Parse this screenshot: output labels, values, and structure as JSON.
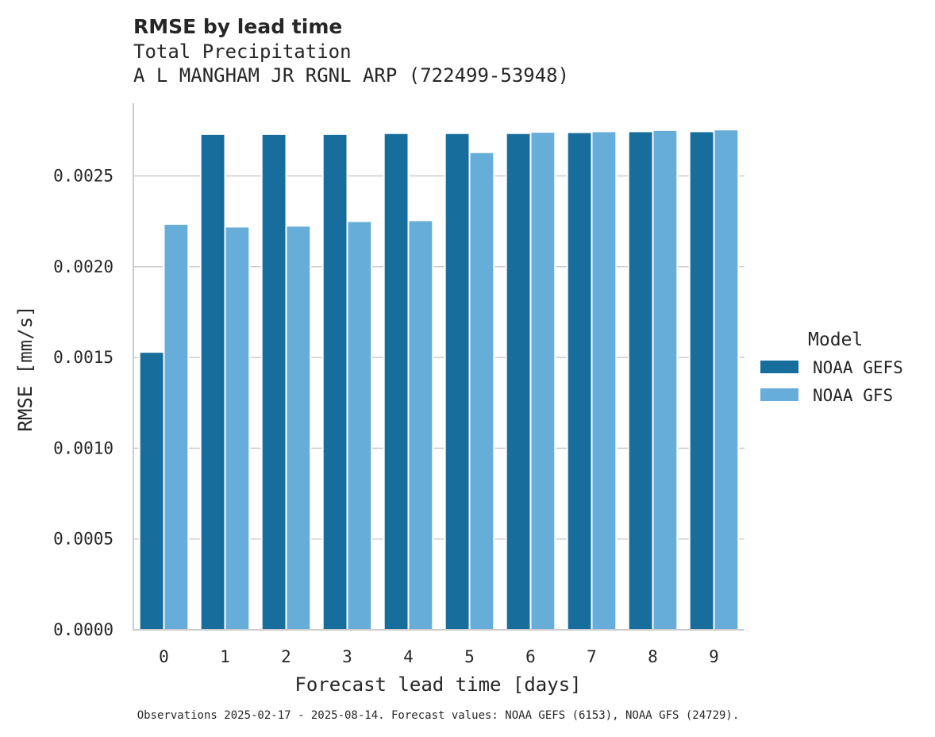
{
  "chart_data": {
    "type": "bar",
    "title": "RMSE by lead time",
    "subtitle_line1": "Total Precipitation",
    "subtitle_line2": "A L MANGHAM JR RGNL ARP (722499-53948)",
    "xlabel": "Forecast lead time [days]",
    "ylabel": "RMSE [mm/s]",
    "categories": [
      "0",
      "1",
      "2",
      "3",
      "4",
      "5",
      "6",
      "7",
      "8",
      "9"
    ],
    "ylim": [
      0,
      0.0029
    ],
    "yticks": [
      "0.0000",
      "0.0005",
      "0.0010",
      "0.0015",
      "0.0020",
      "0.0025"
    ],
    "grid": true,
    "legend_title": "Model",
    "legend_position": "right",
    "series": [
      {
        "name": "NOAA GEFS",
        "color": "#176d9c",
        "values": [
          0.00153,
          0.00273,
          0.00273,
          0.00273,
          0.002735,
          0.002735,
          0.002735,
          0.00274,
          0.002745,
          0.002745
        ]
      },
      {
        "name": "NOAA GFS",
        "color": "#67adda",
        "values": [
          0.002235,
          0.00222,
          0.002225,
          0.00225,
          0.002255,
          0.00263,
          0.002742,
          0.002745,
          0.002752,
          0.002755
        ]
      }
    ],
    "footnote": "Observations 2025-02-17 - 2025-08-14. Forecast values: NOAA GEFS (6153), NOAA GFS (24729)."
  }
}
